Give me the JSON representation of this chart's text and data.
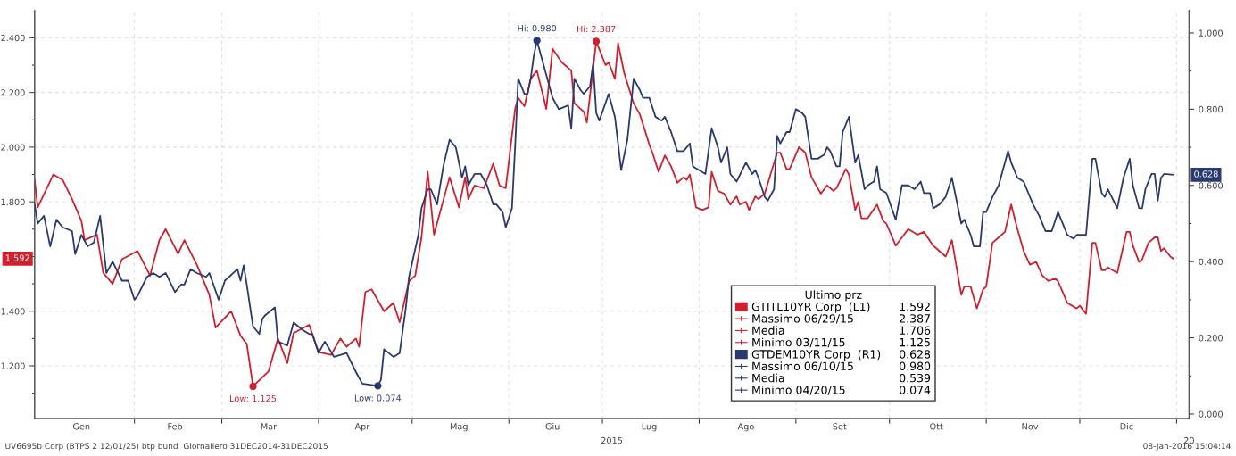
{
  "chart_data": {
    "type": "line",
    "grid": true,
    "legend": "bottom right",
    "legend_title": "Ultimo prz",
    "xlim": [
      "2014-12-31",
      "2016-01-05"
    ],
    "xticks": [
      {
        "value": "2015-01-15",
        "label": "Gen"
      },
      {
        "value": "2015-02-14",
        "label": "Feb"
      },
      {
        "value": "2015-03-16",
        "label": "Mar"
      },
      {
        "value": "2015-04-15",
        "label": "Apr"
      },
      {
        "value": "2015-05-16",
        "label": "Mag"
      },
      {
        "value": "2015-06-15",
        "label": "Giu"
      },
      {
        "value": "2015-07-16",
        "label": "Lug"
      },
      {
        "value": "2015-08-16",
        "label": "Ago"
      },
      {
        "value": "2015-09-15",
        "label": "Set"
      },
      {
        "value": "2015-10-16",
        "label": "Ott"
      },
      {
        "value": "2015-11-15",
        "label": "Nov"
      },
      {
        "value": "2015-12-16",
        "label": "Dic"
      },
      {
        "value": "2015-02-01",
        "label": null
      },
      {
        "value": "2015-03-01",
        "label": null
      },
      {
        "value": "2015-04-01",
        "label": null
      },
      {
        "value": "2015-05-01",
        "label": null
      },
      {
        "value": "2015-06-01",
        "label": null
      },
      {
        "value": "2015-07-01",
        "label": null
      },
      {
        "value": "2015-08-01",
        "label": null
      },
      {
        "value": "2015-09-01",
        "label": null
      },
      {
        "value": "2015-10-01",
        "label": null
      },
      {
        "value": "2015-11-01",
        "label": null
      },
      {
        "value": "2015-12-01",
        "label": null
      },
      {
        "value": "2016-01-01",
        "label": null
      }
    ],
    "ylim": [
      1.007,
      2.5
    ],
    "yticks": [
      {
        "value": 1.2,
        "label": "1.200"
      },
      {
        "value": 1.4,
        "label": "1.400"
      },
      {
        "value": 1.6,
        "label": null
      },
      {
        "value": 1.8,
        "label": "1.800"
      },
      {
        "value": 2.0,
        "label": "2.000"
      },
      {
        "value": 2.2,
        "label": "2.200"
      },
      {
        "value": 2.4,
        "label": "2.400"
      },
      {
        "value": 1.1,
        "label": null
      },
      {
        "value": 1.3,
        "label": null
      },
      {
        "value": 1.5,
        "label": null
      },
      {
        "value": 1.7,
        "label": null
      },
      {
        "value": 1.9,
        "label": null
      },
      {
        "value": 2.1,
        "label": null
      },
      {
        "value": 2.3,
        "label": null
      }
    ],
    "y2lim": [
      -0.012,
      1.059
    ],
    "y2ticks": [
      {
        "value": 0.0,
        "label": "0.000"
      },
      {
        "value": 0.2,
        "label": "0.200"
      },
      {
        "value": 0.4,
        "label": "0.400"
      },
      {
        "value": 0.6,
        "label": "0.600"
      },
      {
        "value": 0.8,
        "label": "0.800"
      },
      {
        "value": 1.0,
        "label": "1.000"
      },
      {
        "value": 0.1,
        "label": null
      },
      {
        "value": 0.3,
        "label": null
      },
      {
        "value": 0.5,
        "label": null
      },
      {
        "value": 0.7,
        "label": null
      },
      {
        "value": 0.9,
        "label": null
      }
    ],
    "series": [
      {
        "name": "GTITL10YR Corp  (L1)",
        "color": "#d0202e",
        "axis": "y",
        "x": [
          "2014-12-31",
          "2015-01-01",
          "2015-01-06",
          "2015-01-09",
          "2015-01-12",
          "2015-01-15",
          "2015-01-16",
          "2015-01-20",
          "2015-01-22",
          "2015-01-25",
          "2015-01-28",
          "2015-02-02",
          "2015-02-06",
          "2015-02-09",
          "2015-02-11",
          "2015-02-15",
          "2015-02-17",
          "2015-02-21",
          "2015-02-25",
          "2015-02-27",
          "2015-03-04",
          "2015-03-07",
          "2015-03-09",
          "2015-03-11",
          "2015-03-16",
          "2015-03-19",
          "2015-03-22",
          "2015-03-24",
          "2015-03-29",
          "2015-04-01",
          "2015-04-05",
          "2015-04-08",
          "2015-04-10",
          "2015-04-13",
          "2015-04-14",
          "2015-04-16",
          "2015-04-18",
          "2015-04-22",
          "2015-04-25",
          "2015-04-27",
          "2015-04-30",
          "2015-05-02",
          "2015-05-04",
          "2015-05-06",
          "2015-05-08",
          "2015-05-13",
          "2015-05-16",
          "2015-05-18",
          "2015-05-19",
          "2015-05-21",
          "2015-05-24",
          "2015-05-27",
          "2015-05-29",
          "2015-05-31",
          "2015-06-03",
          "2015-06-04",
          "2015-06-06",
          "2015-06-08",
          "2015-06-10",
          "2015-06-13",
          "2015-06-15",
          "2015-06-18",
          "2015-06-21",
          "2015-06-22",
          "2015-06-25",
          "2015-06-26",
          "2015-06-29",
          "2015-07-02",
          "2015-07-03",
          "2015-07-05",
          "2015-07-06",
          "2015-07-08",
          "2015-07-11",
          "2015-07-13",
          "2015-07-16",
          "2015-07-17",
          "2015-07-19",
          "2015-07-21",
          "2015-07-23",
          "2015-07-25",
          "2015-07-27",
          "2015-07-28",
          "2015-07-29",
          "2015-07-31",
          "2015-08-02",
          "2015-08-04",
          "2015-08-05",
          "2015-08-07",
          "2015-08-09",
          "2015-08-11",
          "2015-08-13",
          "2015-08-14",
          "2015-08-16",
          "2015-08-17",
          "2015-08-19",
          "2015-08-20",
          "2015-08-22",
          "2015-08-26",
          "2015-08-27",
          "2015-08-29",
          "2015-08-30",
          "2015-09-02",
          "2015-09-04",
          "2015-09-06",
          "2015-09-09",
          "2015-09-11",
          "2015-09-13",
          "2015-09-14",
          "2015-09-17",
          "2015-09-18",
          "2015-09-20",
          "2015-09-21",
          "2015-09-22",
          "2015-09-24",
          "2015-09-27",
          "2015-09-29",
          "2015-09-30",
          "2015-10-03",
          "2015-10-05",
          "2015-10-07",
          "2015-10-10",
          "2015-10-12",
          "2015-10-15",
          "2015-10-16",
          "2015-10-19",
          "2015-10-21",
          "2015-10-24",
          "2015-10-25",
          "2015-10-27",
          "2015-10-29",
          "2015-10-31",
          "2015-11-01",
          "2015-11-03",
          "2015-11-05",
          "2015-11-07",
          "2015-11-09",
          "2015-11-11",
          "2015-11-13",
          "2015-11-15",
          "2015-11-17",
          "2015-11-19",
          "2015-11-21",
          "2015-11-23",
          "2015-11-24",
          "2015-11-27",
          "2015-11-30",
          "2015-12-01",
          "2015-12-03",
          "2015-12-05",
          "2015-12-06",
          "2015-12-08",
          "2015-12-09",
          "2015-12-10",
          "2015-12-13",
          "2015-12-15",
          "2015-12-16",
          "2015-12-17",
          "2015-12-18",
          "2015-12-20",
          "2015-12-21",
          "2015-12-23",
          "2015-12-25",
          "2015-12-26",
          "2015-12-27",
          "2015-12-28",
          "2015-12-30",
          "2015-12-31"
        ],
        "values": [
          1.88,
          1.78,
          1.9,
          1.88,
          1.81,
          1.73,
          1.66,
          1.68,
          1.54,
          1.5,
          1.59,
          1.62,
          1.53,
          1.66,
          1.7,
          1.61,
          1.66,
          1.57,
          1.46,
          1.34,
          1.4,
          1.31,
          1.28,
          1.125,
          1.18,
          1.3,
          1.21,
          1.32,
          1.35,
          1.25,
          1.24,
          1.3,
          1.27,
          1.3,
          1.27,
          1.47,
          1.48,
          1.4,
          1.43,
          1.36,
          1.51,
          1.53,
          1.67,
          1.91,
          1.68,
          1.89,
          1.78,
          1.89,
          1.81,
          1.86,
          1.85,
          1.94,
          1.86,
          1.85,
          2.14,
          2.18,
          2.15,
          2.25,
          2.28,
          2.14,
          2.36,
          2.31,
          2.28,
          2.16,
          2.13,
          2.09,
          2.387,
          2.3,
          2.31,
          2.25,
          2.38,
          2.27,
          2.16,
          2.12,
          2.01,
          1.98,
          1.91,
          1.97,
          1.93,
          1.87,
          1.89,
          1.88,
          1.9,
          1.78,
          1.77,
          1.78,
          1.91,
          1.84,
          1.83,
          1.79,
          1.82,
          1.79,
          1.8,
          1.77,
          1.82,
          1.81,
          1.83,
          1.98,
          1.98,
          1.92,
          1.92,
          2.0,
          1.98,
          1.89,
          1.83,
          1.86,
          1.84,
          1.85,
          1.92,
          1.9,
          1.77,
          1.8,
          1.74,
          1.74,
          1.79,
          1.73,
          1.72,
          1.64,
          1.67,
          1.7,
          1.68,
          1.69,
          1.64,
          1.63,
          1.6,
          1.66,
          1.46,
          1.49,
          1.49,
          1.41,
          1.48,
          1.49,
          1.65,
          1.67,
          1.69,
          1.79,
          1.7,
          1.62,
          1.57,
          1.58,
          1.53,
          1.51,
          1.52,
          1.51,
          1.43,
          1.41,
          1.42,
          1.39,
          1.65,
          1.65,
          1.55,
          1.55,
          1.56,
          1.54,
          1.64,
          1.69,
          1.69,
          1.64,
          1.58,
          1.59,
          1.65,
          1.67,
          1.67,
          1.62,
          1.63,
          1.6,
          1.592
        ]
      },
      {
        "name": "GTDEM10YR Corp  (R1)",
        "color": "#2b3a6e",
        "axis": "y2",
        "x": [
          "2014-12-31",
          "2015-01-01",
          "2015-01-03",
          "2015-01-05",
          "2015-01-07",
          "2015-01-09",
          "2015-01-12",
          "2015-01-13",
          "2015-01-15",
          "2015-01-17",
          "2015-01-19",
          "2015-01-21",
          "2015-01-23",
          "2015-01-25",
          "2015-01-28",
          "2015-01-30",
          "2015-02-01",
          "2015-02-02",
          "2015-02-05",
          "2015-02-07",
          "2015-02-09",
          "2015-02-11",
          "2015-02-14",
          "2015-02-16",
          "2015-02-17",
          "2015-02-19",
          "2015-02-21",
          "2015-02-24",
          "2015-02-25",
          "2015-02-28",
          "2015-03-02",
          "2015-03-06",
          "2015-03-07",
          "2015-03-08",
          "2015-03-09",
          "2015-03-11",
          "2015-03-13",
          "2015-03-14",
          "2015-03-15",
          "2015-03-18",
          "2015-03-19",
          "2015-03-22",
          "2015-03-24",
          "2015-03-27",
          "2015-03-29",
          "2015-03-30",
          "2015-04-01",
          "2015-04-03",
          "2015-04-06",
          "2015-04-10",
          "2015-04-13",
          "2015-04-15",
          "2015-04-20",
          "2015-04-21",
          "2015-04-22",
          "2015-04-25",
          "2015-04-27",
          "2015-04-29",
          "2015-04-30",
          "2015-05-03",
          "2015-05-04",
          "2015-05-06",
          "2015-05-07",
          "2015-05-09",
          "2015-05-11",
          "2015-05-13",
          "2015-05-15",
          "2015-05-17",
          "2015-05-18",
          "2015-05-19",
          "2015-05-21",
          "2015-05-23",
          "2015-05-25",
          "2015-05-27",
          "2015-05-28",
          "2015-05-30",
          "2015-05-31",
          "2015-06-02",
          "2015-06-03",
          "2015-06-04",
          "2015-06-06",
          "2015-06-07",
          "2015-06-08",
          "2015-06-09",
          "2015-06-10",
          "2015-06-13",
          "2015-06-15",
          "2015-06-17",
          "2015-06-20",
          "2015-06-21",
          "2015-06-22",
          "2015-06-24",
          "2015-06-25",
          "2015-06-27",
          "2015-06-28",
          "2015-06-29",
          "2015-06-30",
          "2015-07-03",
          "2015-07-05",
          "2015-07-07",
          "2015-07-09",
          "2015-07-11",
          "2015-07-13",
          "2015-07-14",
          "2015-07-16",
          "2015-07-18",
          "2015-07-20",
          "2015-07-21",
          "2015-07-23",
          "2015-07-25",
          "2015-07-27",
          "2015-07-29",
          "2015-07-30",
          "2015-08-01",
          "2015-08-03",
          "2015-08-05",
          "2015-08-07",
          "2015-08-08",
          "2015-08-10",
          "2015-08-11",
          "2015-08-13",
          "2015-08-16",
          "2015-08-18",
          "2015-08-19",
          "2015-08-20",
          "2015-08-22",
          "2015-08-23",
          "2015-08-25",
          "2015-08-26",
          "2015-08-27",
          "2015-08-29",
          "2015-08-30",
          "2015-09-01",
          "2015-09-03",
          "2015-09-04",
          "2015-09-06",
          "2015-09-08",
          "2015-09-10",
          "2015-09-11",
          "2015-09-12",
          "2015-09-14",
          "2015-09-15",
          "2015-09-16",
          "2015-09-18",
          "2015-09-20",
          "2015-09-21",
          "2015-09-23",
          "2015-09-24",
          "2015-09-26",
          "2015-09-27",
          "2015-09-28",
          "2015-09-30",
          "2015-10-03",
          "2015-10-05",
          "2015-10-07",
          "2015-10-09",
          "2015-10-11",
          "2015-10-12",
          "2015-10-14",
          "2015-10-15",
          "2015-10-17",
          "2015-10-19",
          "2015-10-21",
          "2015-10-24",
          "2015-10-25",
          "2015-10-27",
          "2015-10-28",
          "2015-10-30",
          "2015-10-31",
          "2015-11-01",
          "2015-11-03",
          "2015-11-05",
          "2015-11-08",
          "2015-11-09",
          "2015-11-11",
          "2015-11-13",
          "2015-11-16",
          "2015-11-18",
          "2015-11-20",
          "2015-11-22",
          "2015-11-24",
          "2015-11-25",
          "2015-11-27",
          "2015-11-29",
          "2015-11-30",
          "2015-12-03",
          "2015-12-05",
          "2015-12-06",
          "2015-12-08",
          "2015-12-09",
          "2015-12-10",
          "2015-12-13",
          "2015-12-15",
          "2015-12-17",
          "2015-12-18",
          "2015-12-20",
          "2015-12-21",
          "2015-12-22",
          "2015-12-24",
          "2015-12-25",
          "2015-12-26",
          "2015-12-27",
          "2015-12-28",
          "2015-12-31"
        ],
        "values": [
          0.55,
          0.5,
          0.52,
          0.44,
          0.51,
          0.49,
          0.48,
          0.42,
          0.47,
          0.44,
          0.45,
          0.52,
          0.37,
          0.4,
          0.35,
          0.35,
          0.3,
          0.31,
          0.36,
          0.37,
          0.36,
          0.37,
          0.32,
          0.34,
          0.34,
          0.38,
          0.37,
          0.36,
          0.37,
          0.3,
          0.35,
          0.38,
          0.35,
          0.39,
          0.34,
          0.23,
          0.21,
          0.25,
          0.26,
          0.28,
          0.19,
          0.18,
          0.24,
          0.22,
          0.21,
          0.21,
          0.16,
          0.19,
          0.15,
          0.16,
          0.11,
          0.08,
          0.074,
          0.09,
          0.17,
          0.15,
          0.16,
          0.28,
          0.36,
          0.47,
          0.54,
          0.59,
          0.59,
          0.55,
          0.65,
          0.72,
          0.7,
          0.62,
          0.65,
          0.6,
          0.63,
          0.63,
          0.6,
          0.55,
          0.55,
          0.53,
          0.49,
          0.54,
          0.7,
          0.88,
          0.84,
          0.84,
          0.88,
          0.94,
          0.98,
          0.89,
          0.83,
          0.8,
          0.81,
          0.75,
          0.88,
          0.85,
          0.84,
          0.86,
          0.92,
          0.79,
          0.77,
          0.84,
          0.78,
          0.64,
          0.72,
          0.88,
          0.85,
          0.83,
          0.83,
          0.78,
          0.77,
          0.78,
          0.74,
          0.69,
          0.69,
          0.71,
          0.65,
          0.64,
          0.63,
          0.75,
          0.7,
          0.66,
          0.7,
          0.63,
          0.61,
          0.66,
          0.63,
          0.64,
          0.62,
          0.57,
          0.56,
          0.59,
          0.73,
          0.71,
          0.74,
          0.74,
          0.8,
          0.79,
          0.78,
          0.67,
          0.67,
          0.68,
          0.7,
          0.69,
          0.65,
          0.65,
          0.74,
          0.78,
          0.66,
          0.68,
          0.59,
          0.6,
          0.61,
          0.65,
          0.59,
          0.58,
          0.51,
          0.6,
          0.6,
          0.59,
          0.61,
          0.58,
          0.58,
          0.54,
          0.55,
          0.57,
          0.62,
          0.5,
          0.51,
          0.47,
          0.44,
          0.44,
          0.53,
          0.53,
          0.57,
          0.6,
          0.69,
          0.66,
          0.62,
          0.61,
          0.55,
          0.52,
          0.48,
          0.48,
          0.53,
          0.51,
          0.47,
          0.46,
          0.47,
          0.47,
          0.67,
          0.67,
          0.58,
          0.57,
          0.59,
          0.54,
          0.62,
          0.67,
          0.6,
          0.54,
          0.54,
          0.59,
          0.63,
          0.63,
          0.56,
          0.62,
          0.63,
          0.628
        ]
      }
    ],
    "annotations": [
      {
        "text": "Low: 1.125",
        "x": "2015-03-11",
        "y": 1.125
      },
      {
        "text": "Hi: 2.387",
        "x": "2015-06-29",
        "y": 2.387
      },
      "Low: 0.074",
      "Hi: 0.980",
      "1.592",
      "0.628",
      "2015",
      "20",
      "UV6695b Corp (BTPS 2 12/01/25) btp bund  Giornaliero 31DEC2014-31DEC2015",
      "08-Jan-2016 15:04:14",
      "1.592",
      "Massimo 06/29/15",
      "2.387",
      "Media",
      "1.706",
      "Minimo 03/11/15",
      "1.125",
      "0.628",
      "Massimo 06/10/15",
      "0.980",
      "Media",
      "0.539",
      "Minimo 04/20/15",
      "0.074"
    ]
  }
}
